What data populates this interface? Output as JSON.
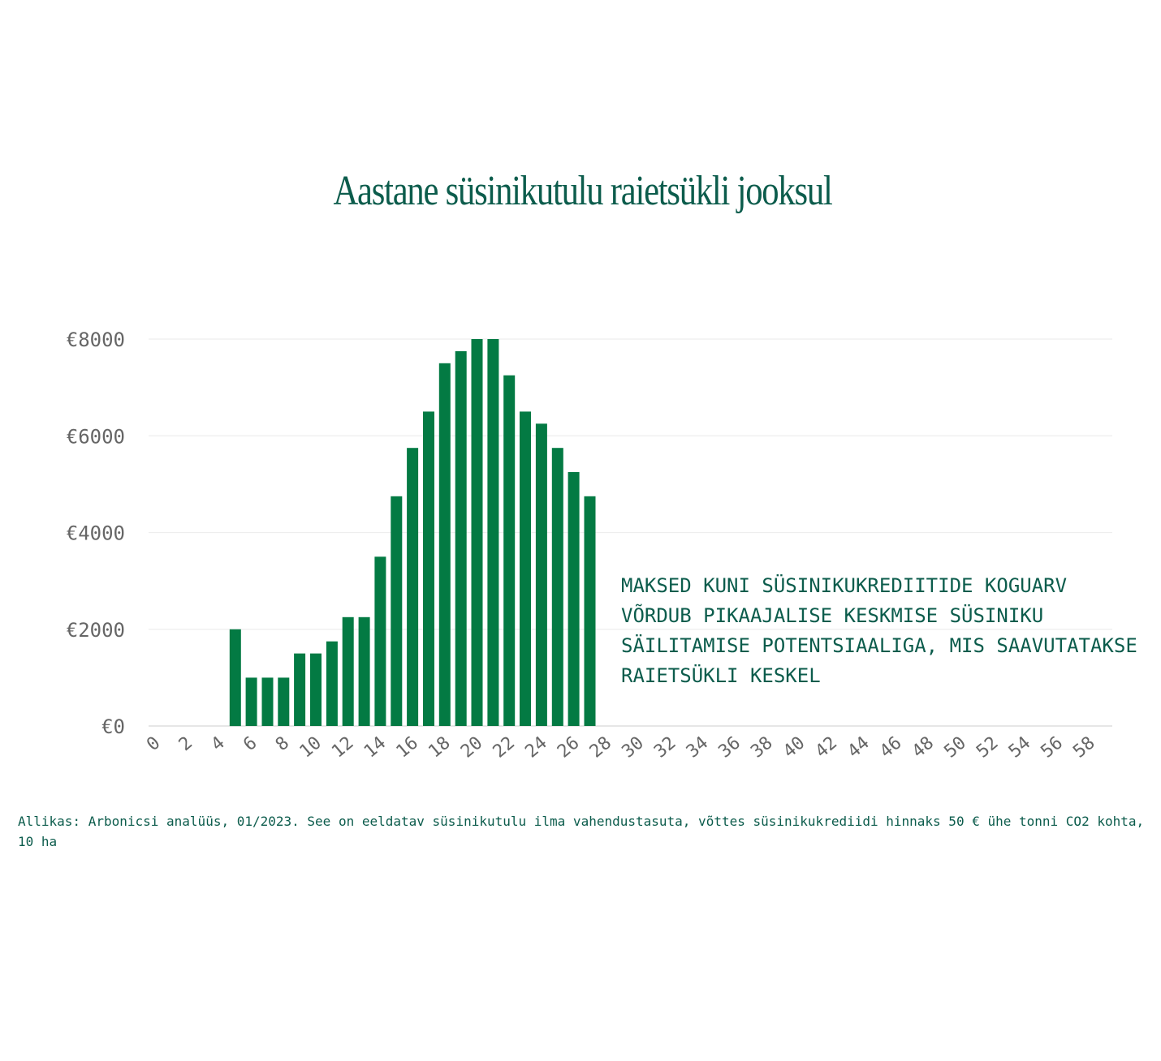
{
  "chart_data": {
    "type": "bar",
    "title": "Aastane süsinikutulu raietsükli jooksul",
    "annotation": "Maksed kuni süsinikukrediitide koguarv võrdub pikaajalise keskmise süsiniku säilitamise potentsiaaliga, mis saavutatakse raietsükli keskel",
    "source": "Allikas: Arbonicsi analüüs, 01/2023. See on eeldatav süsinikutulu ilma vahendustasuta, võttes süsinikukrediidi hinnaks 50 € ühe tonni CO2 kohta, 10 ha",
    "xlabel": "",
    "ylabel": "",
    "ylim": [
      0,
      8000
    ],
    "y_ticks": [
      "€0",
      "€2000",
      "€4000",
      "€6000",
      "€8000"
    ],
    "y_tick_values": [
      0,
      2000,
      4000,
      6000,
      8000
    ],
    "x_ticks": [
      0,
      2,
      4,
      6,
      8,
      10,
      12,
      14,
      16,
      18,
      20,
      22,
      24,
      26,
      28,
      30,
      32,
      34,
      36,
      38,
      40,
      42,
      44,
      46,
      48,
      50,
      52,
      54,
      56,
      58
    ],
    "x_tick_labels": [
      "0",
      "2",
      "4",
      "6",
      "8",
      "10",
      "12",
      "14",
      "16",
      "18",
      "20",
      "22",
      "24",
      "26",
      "28",
      "30",
      "32",
      "34",
      "36",
      "38",
      "40",
      "42",
      "44",
      "46",
      "48",
      "50",
      "52",
      "54",
      "56",
      "58"
    ],
    "x": [
      5,
      6,
      7,
      8,
      9,
      10,
      11,
      12,
      13,
      14,
      15,
      16,
      17,
      18,
      19,
      20,
      21,
      22,
      23,
      24,
      25,
      26,
      27
    ],
    "values": [
      2000,
      1000,
      1000,
      1000,
      1500,
      1500,
      1750,
      2250,
      2250,
      3500,
      4750,
      5750,
      6500,
      7500,
      7750,
      8000,
      8000,
      7250,
      6500,
      6250,
      5750,
      5250,
      4750
    ],
    "grid": true,
    "legend": "none",
    "colors": {
      "bar": "#037a43",
      "title": "#0c5c4c",
      "text": "#0c5c4c",
      "tick": "#666666",
      "grid": "#eeeeee",
      "axis": "#dddddd"
    }
  }
}
